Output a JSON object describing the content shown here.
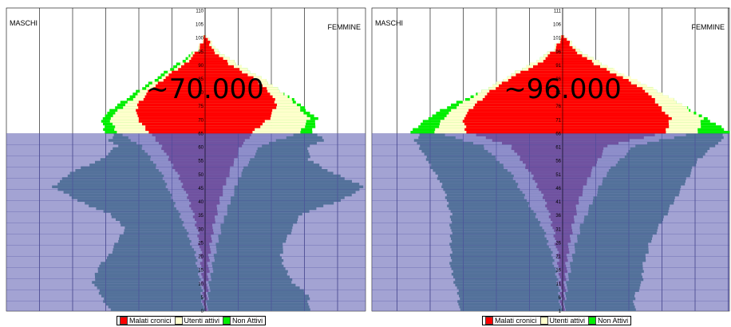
{
  "legend": [
    {
      "label": "Malati cronici",
      "color": "#ff0000"
    },
    {
      "label": "Utenti attivi",
      "color": "#ffffcc"
    },
    {
      "label": "Non Attivi",
      "color": "#00ee00"
    }
  ],
  "colors": {
    "overlay": "#6b6bb8",
    "nonattivi_low": "#2e7d6b",
    "cronici_low": "#7a2a7a"
  },
  "chart_data": [
    {
      "type": "bar",
      "subtype": "population-pyramid",
      "left_label": "MASCHI",
      "right_label": "FEMMINE",
      "annotation": "~70.000",
      "y_ticks": [
        "0",
        "5",
        "10",
        "15",
        "20",
        "25",
        "30",
        "35",
        "40",
        "45",
        "50",
        "55",
        "60",
        "65",
        "70",
        "75",
        "80",
        "85",
        "90",
        "95",
        "100",
        "105",
        "110"
      ],
      "ylim": [
        0,
        111
      ],
      "threshold_age": 65,
      "series": [
        {
          "name": "Malati cronici",
          "ages": [
            0,
            10,
            20,
            30,
            40,
            50,
            60,
            65,
            70,
            75,
            80,
            85,
            90,
            95,
            100
          ],
          "left": [
            0.1,
            0.3,
            0.5,
            1.0,
            2.0,
            3.5,
            5.5,
            7.0,
            8.5,
            8.5,
            7.0,
            5.0,
            2.5,
            0.8,
            0.1
          ],
          "right": [
            0.1,
            0.3,
            0.5,
            1.0,
            1.8,
            3.0,
            4.5,
            6.0,
            8.0,
            9.0,
            8.0,
            6.0,
            3.0,
            1.0,
            0.1
          ]
        },
        {
          "name": "Utenti attivi",
          "ages": [
            0,
            10,
            20,
            30,
            40,
            50,
            60,
            65,
            70,
            75,
            80,
            85,
            90,
            95,
            100
          ],
          "left": [
            0.2,
            0.6,
            1.2,
            2.5,
            4.0,
            5.5,
            8.0,
            11.0,
            12.0,
            10.0,
            8.0,
            5.5,
            3.0,
            1.0,
            0.2
          ],
          "right": [
            0.2,
            0.6,
            1.2,
            2.0,
            3.2,
            4.5,
            7.0,
            12.0,
            13.0,
            11.5,
            9.5,
            7.0,
            4.0,
            1.5,
            0.2
          ]
        },
        {
          "name": "Non Attivi",
          "ages": [
            0,
            5,
            10,
            15,
            20,
            25,
            30,
            35,
            40,
            45,
            50,
            55,
            60,
            62,
            64,
            65,
            70,
            75,
            80,
            85,
            90,
            95,
            100
          ],
          "left": [
            12,
            13,
            14,
            13.5,
            12,
            11,
            10,
            12,
            16,
            19,
            17,
            13,
            11,
            12,
            11.5,
            12.5,
            13,
            11,
            8.5,
            6,
            3.5,
            1,
            0.2
          ],
          "right": [
            13,
            13,
            11,
            10,
            9.5,
            10,
            11,
            12,
            17,
            20,
            16,
            13,
            13,
            15,
            14,
            13.5,
            14,
            12,
            9.5,
            7,
            4,
            1.5,
            0.2
          ]
        }
      ]
    },
    {
      "type": "bar",
      "subtype": "population-pyramid",
      "left_label": "MASCHI",
      "right_label": "FEMMINE",
      "annotation": "~96.000",
      "y_ticks": [
        "1",
        "6",
        "11",
        "16",
        "21",
        "26",
        "31",
        "36",
        "41",
        "46",
        "51",
        "56",
        "61",
        "66",
        "71",
        "76",
        "81",
        "86",
        "91",
        "96",
        "101",
        "106",
        "111"
      ],
      "ylim": [
        0,
        111
      ],
      "threshold_age": 65,
      "series": [
        {
          "name": "Malati cronici",
          "ages": [
            0,
            10,
            20,
            30,
            40,
            50,
            60,
            65,
            70,
            75,
            80,
            85,
            90,
            95,
            100
          ],
          "left": [
            0.1,
            0.3,
            0.6,
            1.2,
            2.2,
            4.0,
            6.5,
            12.0,
            12.5,
            11.0,
            9.0,
            6.5,
            3.0,
            1.0,
            0.1
          ],
          "right": [
            0.1,
            0.3,
            0.6,
            1.2,
            2.0,
            3.5,
            5.5,
            13.0,
            13.5,
            12.0,
            10.5,
            7.5,
            4.0,
            1.5,
            0.2
          ]
        },
        {
          "name": "Utenti attivi",
          "ages": [
            0,
            10,
            20,
            30,
            40,
            50,
            60,
            65,
            70,
            75,
            80,
            85,
            90,
            95,
            100
          ],
          "left": [
            0.2,
            0.6,
            1.3,
            2.5,
            4.5,
            6.5,
            10.0,
            16.0,
            15.0,
            13.0,
            10.0,
            7.0,
            4.0,
            1.2,
            0.2
          ],
          "right": [
            0.2,
            0.6,
            1.3,
            2.2,
            3.8,
            5.5,
            9.0,
            17.0,
            17.5,
            15.0,
            12.0,
            8.5,
            5.0,
            2.0,
            0.3
          ]
        },
        {
          "name": "Non Attivi",
          "ages": [
            0,
            5,
            10,
            15,
            20,
            25,
            30,
            35,
            40,
            45,
            50,
            55,
            60,
            62,
            64,
            65,
            70,
            75,
            80,
            85,
            90,
            95,
            100
          ],
          "left": [
            13,
            13,
            13.5,
            14,
            14,
            14,
            14,
            14,
            14.5,
            15,
            16,
            17,
            18,
            18.5,
            18,
            19,
            17,
            14,
            10,
            7,
            4,
            1.2,
            0.2
          ],
          "right": [
            9,
            9,
            10,
            10,
            10.5,
            11,
            12,
            13,
            14,
            15,
            16,
            17,
            19,
            20,
            20,
            21,
            18,
            15,
            12,
            8,
            5,
            2,
            0.3
          ]
        }
      ]
    }
  ]
}
